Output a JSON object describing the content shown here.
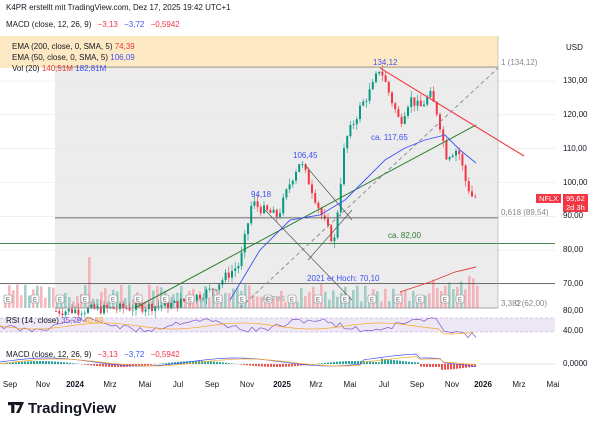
{
  "header": {
    "text": "K4PR erstellt mit TradingView.com, Dez 17, 2025 19:42 UTC+1"
  },
  "macd_top": {
    "label": "MACD (close, 12, 26, 9)",
    "v1": "−3,13",
    "v2": "−3,72",
    "v3": "−0,5942"
  },
  "currency": "USD",
  "legend": [
    {
      "label": "EMA (200, close, 0, SMA, 5)",
      "value": "74,39",
      "color": "#e53935"
    },
    {
      "label": "EMA (50, close, 0, SMA, 5)",
      "value": "106,09",
      "color": "#3f51f5"
    },
    {
      "label": "Vol (20)",
      "value": "140,51M",
      "value2": "182,81M",
      "color": "#e53935"
    }
  ],
  "annotations": {
    "high": "134,12",
    "fib1": "1 (134,12)",
    "ca117": "ca. 117,65",
    "high2": "106,45",
    "low94": "94,18",
    "fib618": "0,618 (89,54)",
    "ca82": "ca. 82,00",
    "prev_high": "2021 er Hoch: 70,10",
    "fib0": "0 (62,00)",
    "fib0b": "3,382",
    "watermark": "ANTBS"
  },
  "price_tag": {
    "ticker": "NFLX",
    "price": "95,62",
    "time": "2d 3h"
  },
  "rsi": {
    "label": "RSI (14, close)",
    "v1": "35,79",
    "v2": "40,89"
  },
  "macd_bottom": {
    "label": "MACD (close, 12, 26, 9)",
    "v1": "−3,13",
    "v2": "−3,72",
    "v3": "−0,5942"
  },
  "logo": "TradingView",
  "colors": {
    "down": "#f23645",
    "up": "#089981",
    "trend_green": "#2e7d32",
    "ema50": "#3f51f5",
    "ema200": "#e53935",
    "highlight": "#fde9c4"
  },
  "chart_data": {
    "type": "candlestick",
    "y_axis": {
      "ticks": [
        70,
        80,
        90,
        100,
        110,
        120,
        130
      ],
      "range": [
        61,
        145
      ]
    },
    "rsi_axis": {
      "ticks": [
        40,
        60,
        80
      ]
    },
    "macd_axis": {
      "ticks": [
        "0,0000"
      ]
    },
    "x_axis": {
      "ticks": [
        {
          "label": "Sep",
          "bold": false
        },
        {
          "label": "Nov",
          "bold": false
        },
        {
          "label": "2024",
          "bold": true
        },
        {
          "label": "Mrz",
          "bold": false
        },
        {
          "label": "Mai",
          "bold": false
        },
        {
          "label": "Jul",
          "bold": false
        },
        {
          "label": "Sep",
          "bold": false
        },
        {
          "label": "Nov",
          "bold": false
        },
        {
          "label": "2025",
          "bold": true
        },
        {
          "label": "Mrz",
          "bold": false
        },
        {
          "label": "Mai",
          "bold": false
        },
        {
          "label": "Jul",
          "bold": false
        },
        {
          "label": "Sep",
          "bold": false
        },
        {
          "label": "Nov",
          "bold": false
        },
        {
          "label": "2026",
          "bold": true
        },
        {
          "label": "Mrz",
          "bold": false
        },
        {
          "label": "Mai",
          "bold": false
        }
      ]
    },
    "levels": [
      {
        "name": "fib_1",
        "value": 134.12
      },
      {
        "name": "fib_0.618",
        "value": 89.54
      },
      {
        "name": "support",
        "value": 82.0
      },
      {
        "name": "prev_high",
        "value": 70.1
      },
      {
        "name": "last",
        "value": 95.62
      }
    ],
    "key_points": [
      {
        "x": "2023-10",
        "y": 62
      },
      {
        "x": "2024-12",
        "y": 94.18
      },
      {
        "x": "2025-01",
        "y": 106.45
      },
      {
        "x": "2025-04",
        "y": 82
      },
      {
        "x": "2025-06",
        "y": 134.12
      },
      {
        "x": "2025-10",
        "y": 117.65
      },
      {
        "x": "2025-12",
        "y": 95.62
      }
    ]
  }
}
